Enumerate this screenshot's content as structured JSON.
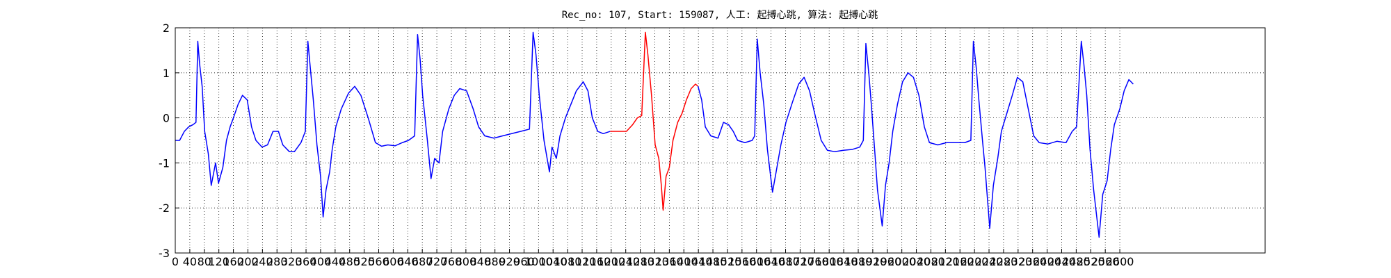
{
  "chart_data": {
    "type": "line",
    "title": "Rec_no: 107, Start: 159087, 人工: 起搏心跳, 算法: 起搏心跳",
    "xlim": [
      0,
      3000
    ],
    "ylim": [
      -3,
      2
    ],
    "xticks": [
      0,
      40,
      80,
      120,
      160,
      200,
      240,
      280,
      320,
      360,
      400,
      440,
      480,
      520,
      560,
      600,
      640,
      680,
      720,
      760,
      800,
      840,
      880,
      920,
      960,
      1000,
      1040,
      1080,
      1120,
      1160,
      1200,
      1240,
      1280,
      1320,
      1360,
      1400,
      1440,
      1480,
      1520,
      1560,
      1600,
      1640,
      1680,
      1720,
      1760,
      1800,
      1840,
      1880,
      1920,
      1960,
      2000,
      2040,
      2080,
      2120,
      2160,
      2200,
      2240,
      2280,
      2320,
      2360,
      2400,
      2440,
      2480,
      2520,
      2560,
      2600
    ],
    "yticks": [
      -3,
      -2,
      -1,
      0,
      1,
      2
    ],
    "grid": true,
    "series": [
      {
        "color": "#0000ff",
        "x": [
          0,
          12,
          25,
          37,
          49,
          57,
          62,
          67,
          74,
          81,
          91,
          99,
          111,
          119,
          131,
          141,
          151,
          160,
          173,
          185,
          198,
          210,
          222,
          239,
          254,
          269,
          284,
          296,
          314,
          328,
          346,
          358,
          365,
          373,
          380,
          390,
          400,
          407,
          415,
          425,
          432,
          442,
          457,
          477,
          494,
          511,
          531,
          551,
          568,
          585,
          605,
          625,
          642,
          659,
          667,
          674,
          681,
          694,
          704,
          714,
          726,
          736,
          753,
          768,
          783,
          802,
          820,
          835,
          852,
          877,
          901,
          926,
          951,
          975,
          985,
          993,
          1002,
          1015,
          1030,
          1037,
          1049,
          1059,
          1074,
          1089,
          1104,
          1123,
          1136,
          1148,
          1163,
          1178,
          1197
        ],
        "values": [
          -0.5,
          -0.5,
          -0.3,
          -0.2,
          -0.15,
          -0.1,
          1.7,
          1.2,
          0.7,
          -0.3,
          -0.8,
          -1.5,
          -1.0,
          -1.45,
          -1.1,
          -0.5,
          -0.2,
          0,
          0.3,
          0.5,
          0.4,
          -0.2,
          -0.5,
          -0.65,
          -0.6,
          -0.3,
          -0.3,
          -0.6,
          -0.75,
          -0.75,
          -0.55,
          -0.3,
          1.7,
          1.0,
          0.4,
          -0.6,
          -1.3,
          -2.2,
          -1.6,
          -1.2,
          -0.7,
          -0.2,
          0.2,
          0.55,
          0.7,
          0.5,
          0,
          -0.55,
          -0.63,
          -0.6,
          -0.62,
          -0.55,
          -0.5,
          -0.4,
          1.85,
          1.3,
          0.5,
          -0.5,
          -1.35,
          -0.9,
          -1.0,
          -0.3,
          0.2,
          0.5,
          0.65,
          0.6,
          0.2,
          -0.2,
          -0.4,
          -0.45,
          -0.4,
          -0.35,
          -0.3,
          -0.25,
          1.9,
          1.4,
          0.5,
          -0.5,
          -1.2,
          -0.65,
          -0.9,
          -0.4,
          0,
          0.3,
          0.6,
          0.8,
          0.6,
          0,
          -0.3,
          -0.35,
          -0.3
        ]
      },
      {
        "color": "#ff0000",
        "x": [
          1197,
          1222,
          1242,
          1259,
          1272,
          1284,
          1294,
          1301,
          1311,
          1321,
          1331,
          1338,
          1343,
          1351,
          1360,
          1370,
          1383,
          1395,
          1407,
          1420,
          1432,
          1439
        ],
        "values": [
          -0.3,
          -0.3,
          -0.3,
          -0.15,
          0,
          0.05,
          1.9,
          1.4,
          0.5,
          -0.6,
          -0.9,
          -1.5,
          -2.05,
          -1.3,
          -1.1,
          -0.5,
          -0.1,
          0.1,
          0.4,
          0.65,
          0.75,
          0.7
        ]
      },
      {
        "color": "#0000ff",
        "x": [
          1439,
          1449,
          1459,
          1474,
          1494,
          1509,
          1523,
          1536,
          1548,
          1568,
          1588,
          1595,
          1602,
          1610,
          1620,
          1630,
          1644,
          1654,
          1667,
          1681,
          1699,
          1716,
          1731,
          1746,
          1760,
          1778,
          1795,
          1815,
          1839,
          1864,
          1884,
          1894,
          1901,
          1909,
          1916,
          1926,
          1933,
          1946,
          1955,
          1965,
          1975,
          1988,
          2002,
          2017,
          2032,
          2047,
          2062,
          2076,
          2099,
          2123,
          2148,
          2173,
          2190,
          2197,
          2205,
          2212,
          2222,
          2229,
          2242,
          2252,
          2264,
          2274,
          2289,
          2304,
          2318,
          2333,
          2348,
          2363,
          2378,
          2402,
          2427,
          2452,
          2469,
          2481,
          2494,
          2501,
          2509,
          2518,
          2528,
          2543,
          2553,
          2565,
          2575,
          2585,
          2600,
          2612,
          2625,
          2637
        ],
        "values": [
          0.7,
          0.4,
          -0.2,
          -0.4,
          -0.45,
          -0.1,
          -0.15,
          -0.3,
          -0.5,
          -0.55,
          -0.5,
          -0.4,
          1.75,
          1.0,
          0.3,
          -0.7,
          -1.65,
          -1.2,
          -0.6,
          -0.1,
          0.35,
          0.75,
          0.9,
          0.6,
          0.1,
          -0.5,
          -0.72,
          -0.75,
          -0.72,
          -0.7,
          -0.65,
          -0.5,
          1.65,
          1.0,
          0.3,
          -0.8,
          -1.6,
          -2.4,
          -1.5,
          -1.0,
          -0.3,
          0.3,
          0.8,
          1.0,
          0.9,
          0.5,
          -0.2,
          -0.55,
          -0.6,
          -0.55,
          -0.55,
          -0.55,
          -0.5,
          1.7,
          1.1,
          0.4,
          -0.5,
          -1.1,
          -2.45,
          -1.5,
          -0.9,
          -0.3,
          0.1,
          0.5,
          0.9,
          0.8,
          0.2,
          -0.4,
          -0.55,
          -0.58,
          -0.52,
          -0.55,
          -0.3,
          -0.2,
          1.7,
          1.2,
          0.5,
          -0.7,
          -1.6,
          -2.65,
          -1.7,
          -1.4,
          -0.7,
          -0.15,
          0.2,
          0.6,
          0.85,
          0.75
        ]
      }
    ]
  }
}
